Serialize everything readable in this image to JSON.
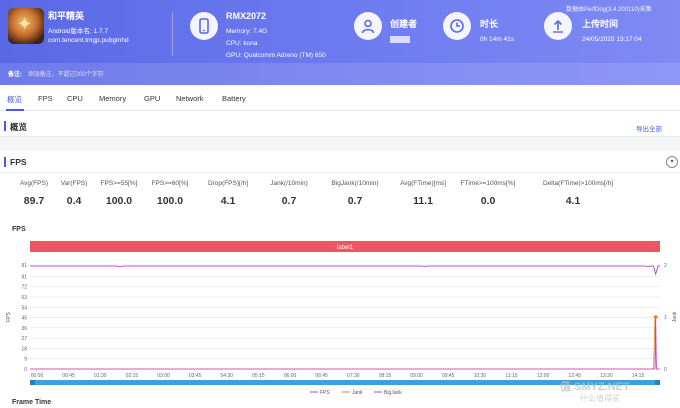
{
  "app": {
    "name": "和平精英",
    "version": "Android版本名: 1.7.7",
    "package": "com.tencent.tmgp.pubgmhd",
    "note_label": "备注:",
    "note_placeholder": "添加备注，不超过200个字符"
  },
  "device": {
    "name": "RMX2072",
    "memory": "Memory: 7.4G",
    "cpu": "CPU: kona",
    "gpu": "GPU: Qualcomm Adreno (TM) 650"
  },
  "creator": {
    "title": "创建者"
  },
  "duration": {
    "title": "时长",
    "value": "0h 14m 41s"
  },
  "upload": {
    "title": "上传时间",
    "value": "24/05/2020 13:17:04"
  },
  "watermark": "数据由PerfDog(3.4.200110)采集",
  "tabs": [
    "概览",
    "FPS",
    "CPU",
    "Memory",
    "GPU",
    "Network",
    "Battery"
  ],
  "overview": {
    "title": "概览",
    "export": "导出全部"
  },
  "fps_section": {
    "title": "FPS",
    "collapse": "▾"
  },
  "stats": [
    {
      "label": "Avg(FPS)",
      "value": "89.7"
    },
    {
      "label": "Var(FPS)",
      "value": "0.4"
    },
    {
      "label": "FPS>=55[%]",
      "value": "100.0"
    },
    {
      "label": "FPS>=60[%]",
      "value": "100.0"
    },
    {
      "label": "Drop(FPS)[/h]",
      "value": "4.1"
    },
    {
      "label": "Jank(/10min)",
      "value": "0.7"
    },
    {
      "label": "BigJank(/10min)",
      "value": "0.7"
    },
    {
      "label": "Avg(FTime)[ms]",
      "value": "11.1"
    },
    {
      "label": "FTime>=100ms[%]",
      "value": "0.0"
    },
    {
      "label": "Delta(FTime)>100ms[/h]",
      "value": "4.1"
    }
  ],
  "chart_label": "FPS",
  "frame_time_label": "Frame Time",
  "site_watermark": "值 SMYZ.NET",
  "site_watermark_sub": "什么值得买",
  "colors": {
    "header": "#6572ea",
    "accent": "#4a5ae8",
    "fps": "#b04ac8",
    "jank": "#f07a2a",
    "label_bar": "#e95763"
  },
  "chart_data": {
    "type": "line",
    "band_label": "label1",
    "ylabel": "FPS",
    "y2label": "Jank",
    "y_ticks": [
      0,
      9,
      18,
      27,
      36,
      45,
      54,
      63,
      72,
      81,
      91
    ],
    "y2_ticks": [
      0,
      1,
      2
    ],
    "x_ticks": [
      "00:00",
      "00:45",
      "01:30",
      "02:15",
      "03:00",
      "03:45",
      "04:30",
      "05:15",
      "06:00",
      "06:45",
      "07:30",
      "08:15",
      "09:00",
      "09:45",
      "10:30",
      "11:15",
      "12:00",
      "12:45",
      "13:30",
      "14:15"
    ],
    "xlim_seconds": [
      0,
      881
    ],
    "ylim": [
      0,
      91
    ],
    "y2lim": [
      0,
      2
    ],
    "legend": [
      "FPS",
      "Jank",
      "BigJank"
    ],
    "legend_position": "bottom",
    "series": [
      {
        "name": "FPS",
        "points": [
          [
            0,
            90
          ],
          [
            120,
            90
          ],
          [
            126,
            89.5
          ],
          [
            132,
            90
          ],
          [
            548,
            90
          ],
          [
            552,
            89.6
          ],
          [
            556,
            90
          ],
          [
            860,
            90
          ],
          [
            864,
            89.4
          ],
          [
            868,
            90
          ],
          [
            872,
            90
          ],
          [
            875,
            83
          ],
          [
            878,
            90
          ],
          [
            881,
            90
          ]
        ]
      },
      {
        "name": "Jank",
        "points": [
          [
            0,
            0
          ],
          [
            872,
            0
          ],
          [
            874,
            1
          ],
          [
            876,
            0
          ],
          [
            881,
            0
          ]
        ]
      },
      {
        "name": "BigJank",
        "points": [
          [
            0,
            0
          ],
          [
            874,
            0
          ],
          [
            875,
            1
          ],
          [
            876,
            0
          ],
          [
            881,
            0
          ]
        ]
      }
    ]
  }
}
